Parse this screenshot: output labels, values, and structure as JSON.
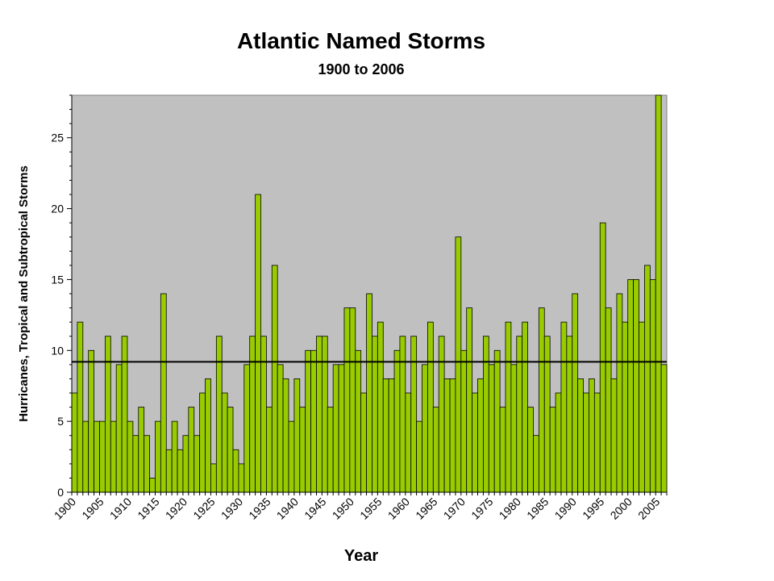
{
  "colors": {
    "plot_background": "#c0c0c0",
    "bar_fill": "#99cc00",
    "bar_stroke": "#000000",
    "average_line": "#000000"
  },
  "chart_data": {
    "type": "bar",
    "title": "Atlantic Named Storms",
    "subtitle": "1900 to 2006",
    "xlabel": "Year",
    "ylabel": "Hurricanes, Tropical and Subtropical Storms",
    "ylim": [
      0,
      28
    ],
    "y_ticks": [
      0,
      5,
      10,
      15,
      20,
      25
    ],
    "x_ticks": [
      "1900",
      "1905",
      "1910",
      "1915",
      "1920",
      "1925",
      "1930",
      "1935",
      "1940",
      "1945",
      "1950",
      "1955",
      "1960",
      "1965",
      "1970",
      "1975",
      "1980",
      "1985",
      "1990",
      "1995",
      "2000",
      "2005"
    ],
    "grid": false,
    "legend": "none",
    "average_line": 9.2,
    "x": [
      1900,
      1901,
      1902,
      1903,
      1904,
      1905,
      1906,
      1907,
      1908,
      1909,
      1910,
      1911,
      1912,
      1913,
      1914,
      1915,
      1916,
      1917,
      1918,
      1919,
      1920,
      1921,
      1922,
      1923,
      1924,
      1925,
      1926,
      1927,
      1928,
      1929,
      1930,
      1931,
      1932,
      1933,
      1934,
      1935,
      1936,
      1937,
      1938,
      1939,
      1940,
      1941,
      1942,
      1943,
      1944,
      1945,
      1946,
      1947,
      1948,
      1949,
      1950,
      1951,
      1952,
      1953,
      1954,
      1955,
      1956,
      1957,
      1958,
      1959,
      1960,
      1961,
      1962,
      1963,
      1964,
      1965,
      1966,
      1967,
      1968,
      1969,
      1970,
      1971,
      1972,
      1973,
      1974,
      1975,
      1976,
      1977,
      1978,
      1979,
      1980,
      1981,
      1982,
      1983,
      1984,
      1985,
      1986,
      1987,
      1988,
      1989,
      1990,
      1991,
      1992,
      1993,
      1994,
      1995,
      1996,
      1997,
      1998,
      1999,
      2000,
      2001,
      2002,
      2003,
      2004,
      2005,
      2006
    ],
    "values": [
      7,
      12,
      5,
      10,
      5,
      5,
      11,
      5,
      9,
      11,
      5,
      4,
      6,
      4,
      1,
      5,
      14,
      3,
      5,
      3,
      4,
      6,
      4,
      7,
      8,
      2,
      11,
      7,
      6,
      3,
      2,
      9,
      11,
      21,
      11,
      6,
      16,
      9,
      8,
      5,
      8,
      6,
      10,
      10,
      11,
      11,
      6,
      9,
      9,
      13,
      13,
      10,
      7,
      14,
      11,
      12,
      8,
      8,
      10,
      11,
      7,
      11,
      5,
      9,
      12,
      6,
      11,
      8,
      8,
      18,
      10,
      13,
      7,
      8,
      11,
      9,
      10,
      6,
      12,
      9,
      11,
      12,
      6,
      4,
      13,
      11,
      6,
      7,
      12,
      11,
      14,
      8,
      7,
      8,
      7,
      19,
      13,
      8,
      14,
      12,
      15,
      15,
      12,
      16,
      15,
      28,
      9
    ]
  }
}
